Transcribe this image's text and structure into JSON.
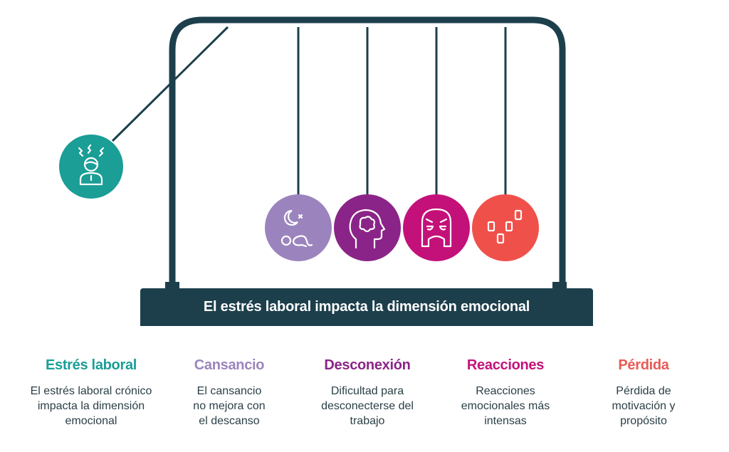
{
  "title": "El estrés laboral impacta la dimensión emocional",
  "items": [
    {
      "heading": "Estrés laboral",
      "text": "El estrés laboral crónico impacta la dimensión emocional",
      "color": "#1a9e96",
      "icon": "stressed-person-icon"
    },
    {
      "heading": "Cansancio",
      "text": "El cansancio no mejora con el descanso",
      "color": "#9b84bd",
      "icon": "sleepless-tired-icon"
    },
    {
      "heading": "Desconexión",
      "text": "Dificultad para desconecterse del trabajo",
      "color": "#8b2488",
      "icon": "head-confusion-icon"
    },
    {
      "heading": "Reacciones",
      "text": "Reacciones emocionales más intensas",
      "color": "#c4117a",
      "icon": "angry-face-icon"
    },
    {
      "heading": "Pérdida",
      "text": "Pérdida de motivación y propósito",
      "color": "#f0504a",
      "icon": "scattered-blocks-icon"
    }
  ],
  "frame_color": "#1d3f4c"
}
